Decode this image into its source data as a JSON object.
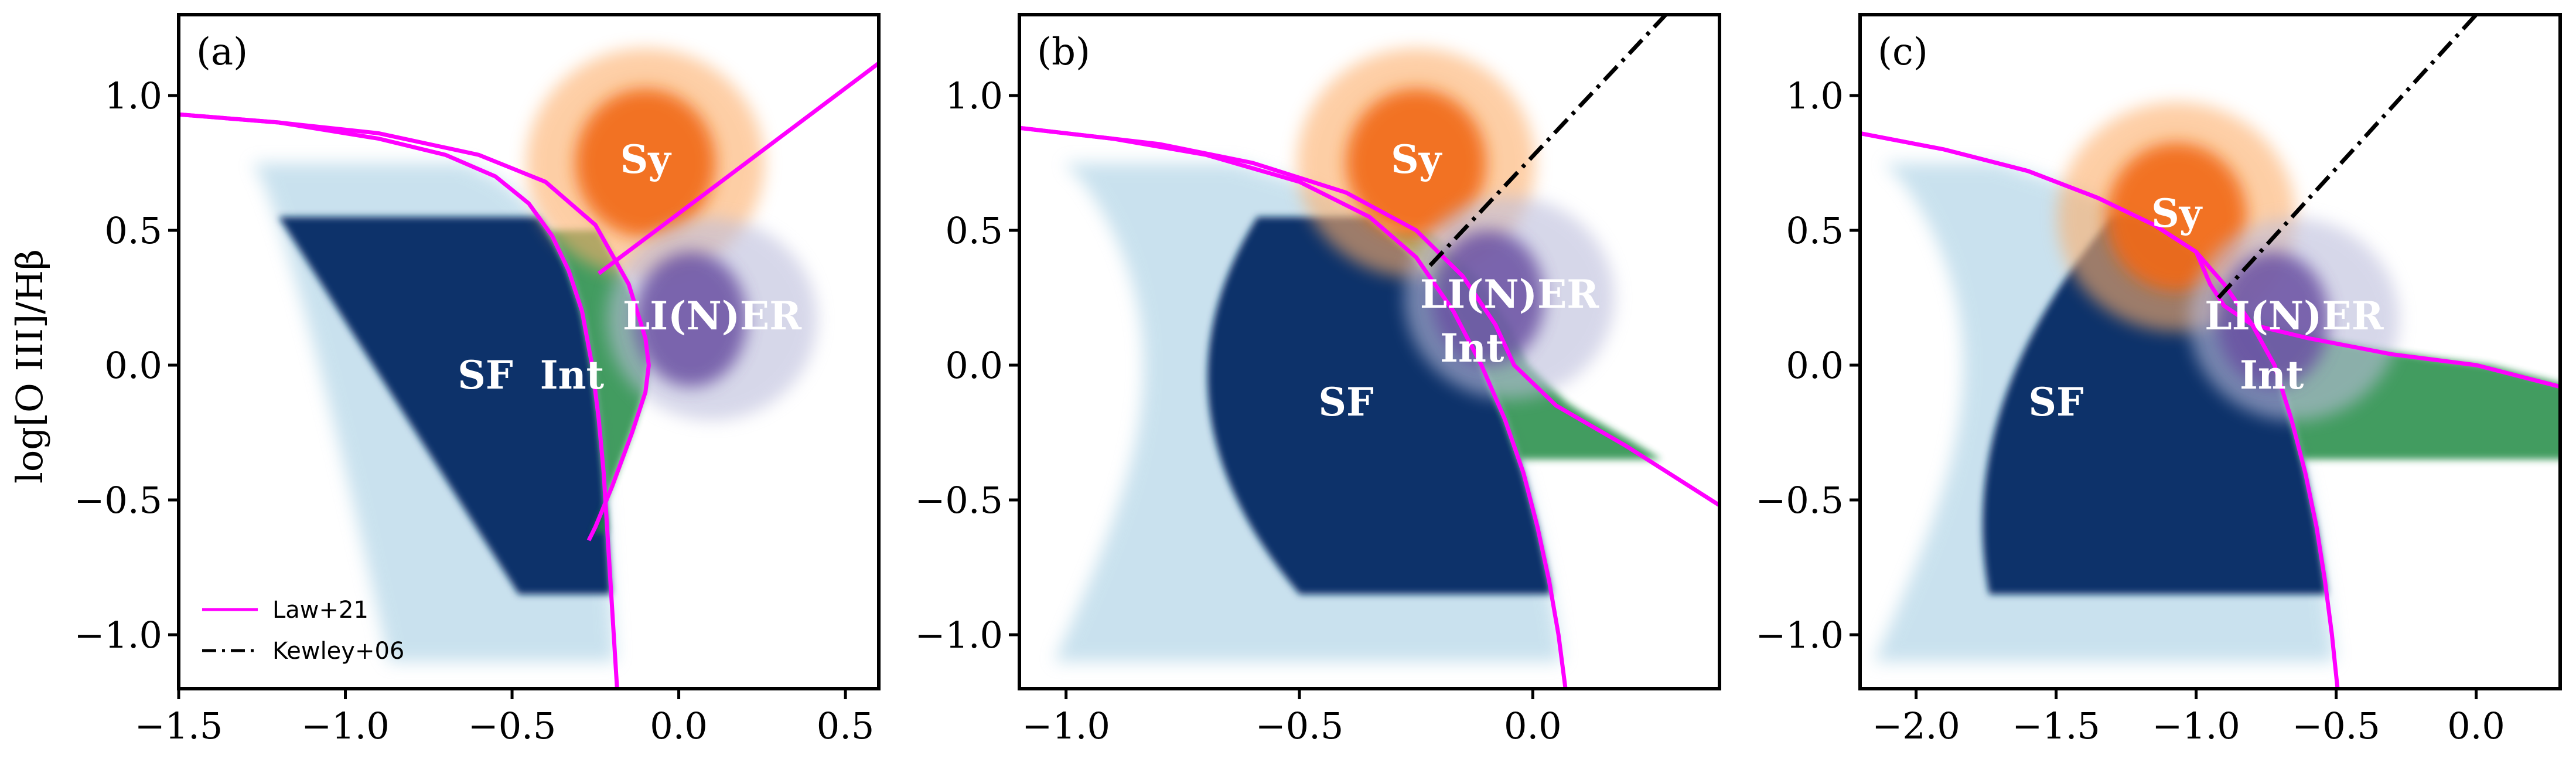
{
  "chart_data": [
    {
      "type": "heatmap",
      "panel_label": "(a)",
      "title": "",
      "xlabel": "",
      "ylabel": "log[O III]/Hβ",
      "xlim": [
        -1.5,
        0.6
      ],
      "ylim": [
        -1.2,
        1.3
      ],
      "xticks": [
        -1.5,
        -1.0,
        -0.5,
        0.0,
        0.5
      ],
      "xtick_labels": [
        "−1.5",
        "−1.0",
        "−0.5",
        "0.0",
        "0.5"
      ],
      "yticks": [
        -1.0,
        -0.5,
        0.0,
        0.5,
        1.0
      ],
      "ytick_labels": [
        "−1.0",
        "−0.5",
        "0.0",
        "0.5",
        "1.0"
      ],
      "regions": [
        {
          "label": "SF",
          "color": "#08306b",
          "label_x": -0.58,
          "label_y": -0.05
        },
        {
          "label": "Int",
          "color": "#238b45",
          "label_x": -0.32,
          "label_y": -0.05
        },
        {
          "label": "Sy",
          "color": "#f16913",
          "label_x": -0.1,
          "label_y": 0.75
        },
        {
          "label": "LI(N)ER",
          "color": "#6a51a3",
          "label_x": 0.1,
          "label_y": 0.17
        }
      ],
      "lines": [
        {
          "name": "Law+21 lower",
          "source": "Law+21",
          "style": "solid",
          "color": "#ff00ff",
          "points": [
            [
              -1.5,
              0.93
            ],
            [
              -1.2,
              0.9
            ],
            [
              -0.9,
              0.84
            ],
            [
              -0.7,
              0.78
            ],
            [
              -0.55,
              0.7
            ],
            [
              -0.45,
              0.6
            ],
            [
              -0.38,
              0.48
            ],
            [
              -0.33,
              0.35
            ],
            [
              -0.29,
              0.2
            ],
            [
              -0.26,
              0.0
            ],
            [
              -0.24,
              -0.2
            ],
            [
              -0.225,
              -0.4
            ],
            [
              -0.215,
              -0.6
            ],
            [
              -0.205,
              -0.8
            ],
            [
              -0.195,
              -1.0
            ],
            [
              -0.185,
              -1.2
            ]
          ]
        },
        {
          "name": "Law+21 upper",
          "source": "Law+21",
          "style": "solid",
          "color": "#ff00ff",
          "points": [
            [
              -1.5,
              0.93
            ],
            [
              -1.2,
              0.9
            ],
            [
              -0.9,
              0.86
            ],
            [
              -0.6,
              0.78
            ],
            [
              -0.4,
              0.68
            ],
            [
              -0.25,
              0.52
            ],
            [
              -0.15,
              0.3
            ],
            [
              -0.1,
              0.1
            ],
            [
              -0.09,
              0.0
            ],
            [
              -0.1,
              -0.1
            ],
            [
              -0.14,
              -0.25
            ],
            [
              -0.2,
              -0.45
            ],
            [
              -0.25,
              -0.6
            ],
            [
              -0.27,
              -0.65
            ]
          ]
        },
        {
          "name": "Law+21 Sy/LINER",
          "source": "Law+21",
          "style": "solid",
          "color": "#ff00ff",
          "points": [
            [
              -0.24,
              0.34
            ],
            [
              0.6,
              1.12
            ]
          ]
        }
      ],
      "legend": {
        "placement": "lower-left",
        "entries": [
          {
            "label": "Law+21",
            "style": "solid",
            "color": "#ff00ff"
          },
          {
            "label": "Kewley+06",
            "style": "dashdot",
            "color": "#000000"
          }
        ]
      }
    },
    {
      "type": "heatmap",
      "panel_label": "(b)",
      "title": "",
      "xlabel": "",
      "ylabel": "",
      "xlim": [
        -1.1,
        0.4
      ],
      "ylim": [
        -1.2,
        1.3
      ],
      "xticks": [
        -1.0,
        -0.5,
        0.0
      ],
      "xtick_labels": [
        "−1.0",
        "−0.5",
        "0.0"
      ],
      "yticks": [
        -1.0,
        -0.5,
        0.0,
        0.5,
        1.0
      ],
      "ytick_labels": [
        "−1.0",
        "−0.5",
        "0.0",
        "0.5",
        "1.0"
      ],
      "regions": [
        {
          "label": "SF",
          "color": "#08306b",
          "label_x": -0.4,
          "label_y": -0.15
        },
        {
          "label": "Int",
          "color": "#238b45",
          "label_x": -0.13,
          "label_y": 0.05
        },
        {
          "label": "Sy",
          "color": "#f16913",
          "label_x": -0.25,
          "label_y": 0.75
        },
        {
          "label": "LI(N)ER",
          "color": "#6a51a3",
          "label_x": -0.05,
          "label_y": 0.25
        }
      ],
      "lines": [
        {
          "name": "Law+21 lower",
          "source": "Law+21",
          "style": "solid",
          "color": "#ff00ff",
          "points": [
            [
              -1.1,
              0.88
            ],
            [
              -0.9,
              0.84
            ],
            [
              -0.7,
              0.78
            ],
            [
              -0.5,
              0.68
            ],
            [
              -0.35,
              0.55
            ],
            [
              -0.25,
              0.4
            ],
            [
              -0.17,
              0.2
            ],
            [
              -0.11,
              0.0
            ],
            [
              -0.06,
              -0.2
            ],
            [
              -0.02,
              -0.4
            ],
            [
              0.01,
              -0.6
            ],
            [
              0.035,
              -0.8
            ],
            [
              0.055,
              -1.0
            ],
            [
              0.07,
              -1.2
            ]
          ]
        },
        {
          "name": "Law+21 upper",
          "source": "Law+21",
          "style": "solid",
          "color": "#ff00ff",
          "points": [
            [
              -1.1,
              0.88
            ],
            [
              -0.8,
              0.82
            ],
            [
              -0.6,
              0.75
            ],
            [
              -0.4,
              0.64
            ],
            [
              -0.25,
              0.5
            ],
            [
              -0.15,
              0.33
            ],
            [
              -0.08,
              0.15
            ],
            [
              -0.04,
              0.0
            ],
            [
              0.05,
              -0.15
            ],
            [
              0.2,
              -0.3
            ],
            [
              0.4,
              -0.52
            ]
          ]
        },
        {
          "name": "Kewley+06",
          "source": "Kewley+06",
          "style": "dashdot",
          "color": "#000000",
          "points": [
            [
              -0.22,
              0.37
            ],
            [
              0.285,
              1.3
            ]
          ]
        }
      ]
    },
    {
      "type": "heatmap",
      "panel_label": "(c)",
      "title": "",
      "xlabel": "",
      "ylabel": "",
      "xlim": [
        -2.2,
        0.3
      ],
      "ylim": [
        -1.2,
        1.3
      ],
      "xticks": [
        -2.0,
        -1.5,
        -1.0,
        -0.5,
        0.0
      ],
      "xtick_labels": [
        "−2.0",
        "−1.5",
        "−1.0",
        "−0.5",
        "0.0"
      ],
      "yticks": [
        -1.0,
        -0.5,
        0.0,
        0.5,
        1.0
      ],
      "ytick_labels": [
        "−1.0",
        "−0.5",
        "0.0",
        "0.5",
        "1.0"
      ],
      "regions": [
        {
          "label": "SF",
          "color": "#08306b",
          "label_x": -1.5,
          "label_y": -0.15
        },
        {
          "label": "Int",
          "color": "#238b45",
          "label_x": -0.73,
          "label_y": -0.05
        },
        {
          "label": "Sy",
          "color": "#f16913",
          "label_x": -1.07,
          "label_y": 0.55
        },
        {
          "label": "LI(N)ER",
          "color": "#6a51a3",
          "label_x": -0.65,
          "label_y": 0.17
        }
      ],
      "lines": [
        {
          "name": "Law+21 lower",
          "source": "Law+21",
          "style": "solid",
          "color": "#ff00ff",
          "points": [
            [
              -2.2,
              0.86
            ],
            [
              -1.9,
              0.8
            ],
            [
              -1.6,
              0.72
            ],
            [
              -1.35,
              0.62
            ],
            [
              -1.15,
              0.52
            ],
            [
              -1.0,
              0.42
            ],
            [
              -0.9,
              0.3
            ],
            [
              -0.8,
              0.15
            ],
            [
              -0.72,
              0.0
            ],
            [
              -0.66,
              -0.2
            ],
            [
              -0.61,
              -0.4
            ],
            [
              -0.57,
              -0.6
            ],
            [
              -0.54,
              -0.8
            ],
            [
              -0.515,
              -1.0
            ],
            [
              -0.495,
              -1.2
            ]
          ]
        },
        {
          "name": "Law+21 upper",
          "source": "Law+21",
          "style": "solid",
          "color": "#ff00ff",
          "points": [
            [
              -2.2,
              0.86
            ],
            [
              -1.9,
              0.8
            ],
            [
              -1.6,
              0.72
            ],
            [
              -1.35,
              0.62
            ],
            [
              -1.15,
              0.52
            ],
            [
              -1.0,
              0.42
            ],
            [
              -0.95,
              0.3
            ],
            [
              -0.9,
              0.22
            ],
            [
              -0.8,
              0.15
            ],
            [
              -0.6,
              0.1
            ],
            [
              -0.3,
              0.04
            ],
            [
              0.0,
              0.0
            ],
            [
              0.3,
              -0.08
            ]
          ]
        },
        {
          "name": "Kewley+06",
          "source": "Kewley+06",
          "style": "dashdot",
          "color": "#000000",
          "points": [
            [
              -0.92,
              0.25
            ],
            [
              0.0,
              1.3
            ]
          ]
        }
      ]
    }
  ]
}
